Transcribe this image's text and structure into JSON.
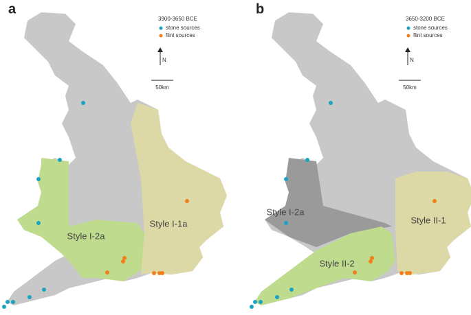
{
  "panels": [
    {
      "label": "a",
      "period": "3900-3650 BCE",
      "legend": [
        "stone sources",
        "flint sources"
      ],
      "north": "N",
      "scale": "50km",
      "regions": [
        "Style I-2a",
        "Style I-1a"
      ]
    },
    {
      "label": "b",
      "period": "3650-3200 BCE",
      "legend": [
        "stone sources",
        "flint sources"
      ],
      "north": "N",
      "scale": "50km",
      "regions": [
        "Style I-2a",
        "Style II-2",
        "Style II-1"
      ]
    }
  ]
}
